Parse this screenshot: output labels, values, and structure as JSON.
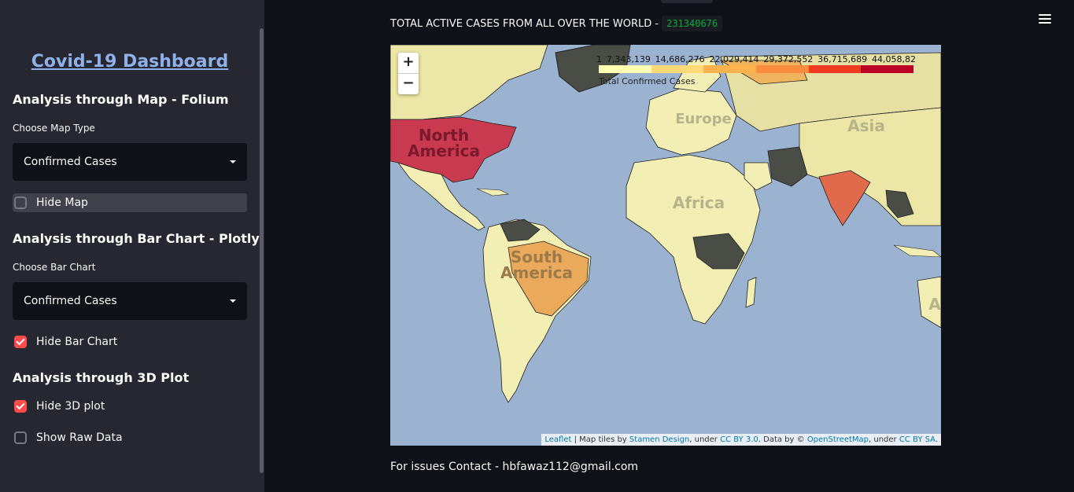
{
  "sidebar": {
    "title": "Covid-19 Dashboard",
    "map_section": {
      "heading": "Analysis through Map - Folium",
      "select_label": "Choose Map Type",
      "select_value": "Confirmed Cases",
      "hide_label": "Hide Map",
      "hide_checked": false
    },
    "bar_section": {
      "heading": "Analysis through Bar Chart - Plotly",
      "select_label": "Choose Bar Chart",
      "select_value": "Confirmed Cases",
      "hide_label": "Hide Bar Chart",
      "hide_checked": true
    },
    "plot3d_section": {
      "heading": "Analysis through 3D Plot",
      "hide_label": "Hide 3D plot",
      "hide_checked": true,
      "raw_label": "Show Raw Data",
      "raw_checked": false
    }
  },
  "main": {
    "total_label": "TOTAL ACTIVE CASES FROM ALL OVER THE WORLD -",
    "total_value": "231340676",
    "contact_text": "For issues Contact - hbfawaz112@gmail.com"
  },
  "map": {
    "zoom_in": "+",
    "zoom_out": "−",
    "legend": {
      "caption": "Total Confirmed Cases",
      "ticks": [
        "1",
        "7,343,139",
        "14,686,276",
        "22,029,414",
        "29,372,552",
        "36,715,689",
        "44,058,82"
      ],
      "colors": [
        "#ffffb2",
        "#fed976",
        "#feb24c",
        "#fd8d3c",
        "#f03b20",
        "#bd0026"
      ]
    },
    "continent_labels": [
      "North America",
      "South America",
      "Europe",
      "Africa",
      "Asia",
      "A"
    ],
    "attribution": {
      "leaflet": "Leaflet",
      "tiles_text": "| Map tiles by",
      "stamen": "Stamen Design",
      "under1": ", under",
      "ccby": "CC BY 3.0",
      "data_by": ". Data by ©",
      "osm": "OpenStreetMap",
      "under2": ", under",
      "ccbysa": "CC BY SA",
      "end": "."
    }
  }
}
